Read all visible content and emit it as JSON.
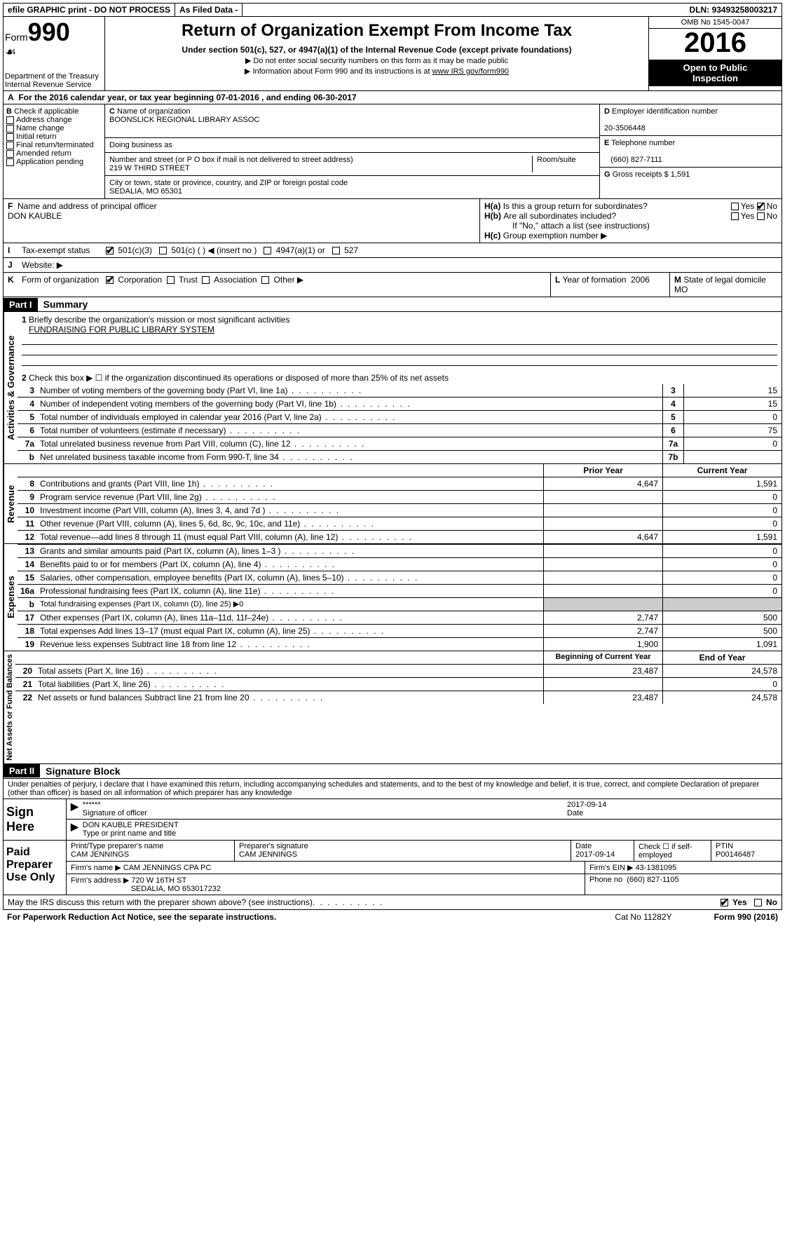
{
  "topbar": {
    "efile": "efile GRAPHIC print - DO NOT PROCESS",
    "asfiled": "As Filed Data -",
    "dln_label": "DLN:",
    "dln": "93493258003217"
  },
  "header": {
    "form_label": "Form",
    "form_num": "990",
    "dept1": "Department of the Treasury",
    "dept2": "Internal Revenue Service",
    "title": "Return of Organization Exempt From Income Tax",
    "subtitle": "Under section 501(c), 527, or 4947(a)(1) of the Internal Revenue Code (except private foundations)",
    "note1": "▶ Do not enter social security numbers on this form as it may be made public",
    "note2_a": "▶ Information about Form 990 and its instructions is at ",
    "note2_link": "www IRS gov/form990",
    "omb": "OMB No  1545-0047",
    "year": "2016",
    "open1": "Open to Public",
    "open2": "Inspection"
  },
  "rowA": {
    "label": "A",
    "text": "For the 2016 calendar year, or tax year beginning 07-01-2016   , and ending 06-30-2017"
  },
  "boxB": {
    "label": "B",
    "title": "Check if applicable",
    "items": [
      "Address change",
      "Name change",
      "Initial return",
      "Final return/terminated",
      "Amended return",
      "Application pending"
    ]
  },
  "boxC": {
    "label": "C",
    "name_label": "Name of organization",
    "name": "BOONSLICK REGIONAL LIBRARY ASSOC",
    "dba_label": "Doing business as",
    "addr_label": "Number and street (or P O  box if mail is not delivered to street address)",
    "room_label": "Room/suite",
    "addr": "219 W THIRD STREET",
    "city_label": "City or town, state or province, country, and ZIP or foreign postal code",
    "city": "SEDALIA, MO  65301"
  },
  "boxD": {
    "label": "D",
    "title": "Employer identification number",
    "val": "20-3506448"
  },
  "boxE": {
    "label": "E",
    "title": "Telephone number",
    "val": "(660) 827-7111"
  },
  "boxG": {
    "label": "G",
    "title": "Gross receipts $",
    "val": "1,591"
  },
  "boxF": {
    "label": "F",
    "title": "Name and address of principal officer",
    "val": "DON KAUBLE"
  },
  "boxH": {
    "a_label": "H(a)",
    "a_text": "Is this a group return for subordinates?",
    "b_label": "H(b)",
    "b_text": "Are all subordinates included?",
    "b_note": "If \"No,\" attach a list  (see instructions)",
    "c_label": "H(c)",
    "c_text": "Group exemption number ▶",
    "yes": "Yes",
    "no": "No"
  },
  "rowI": {
    "label": "I",
    "title": "Tax-exempt status",
    "opt1": "501(c)(3)",
    "opt2": "501(c) (   ) ◀ (insert no )",
    "opt3": "4947(a)(1) or",
    "opt4": "527"
  },
  "rowJ": {
    "label": "J",
    "title": "Website: ▶"
  },
  "rowK": {
    "label": "K",
    "title": "Form of organization",
    "opts": [
      "Corporation",
      "Trust",
      "Association",
      "Other ▶"
    ]
  },
  "rowL": {
    "label": "L",
    "title": "Year of formation",
    "val": "2006"
  },
  "rowM": {
    "label": "M",
    "title": "State of legal domicile",
    "val": "MO"
  },
  "part1": {
    "hdr": "Part I",
    "title": "Summary",
    "line1_label": "1",
    "line1": "Briefly describe the organization's mission or most significant activities",
    "line1_val": "FUNDRAISING FOR PUBLIC LIBRARY SYSTEM",
    "line2_label": "2",
    "line2": "Check this box ▶ ☐  if the organization discontinued its operations or disposed of more than 25% of its net assets",
    "vlabels": {
      "ag": "Activities & Governance",
      "rev": "Revenue",
      "exp": "Expenses",
      "na": "Net Assets or Fund Balances"
    },
    "rows_ag": [
      {
        "n": "3",
        "d": "Number of voting members of the governing body (Part VI, line 1a)",
        "box": "3",
        "v": "15"
      },
      {
        "n": "4",
        "d": "Number of independent voting members of the governing body (Part VI, line 1b)",
        "box": "4",
        "v": "15"
      },
      {
        "n": "5",
        "d": "Total number of individuals employed in calendar year 2016 (Part V, line 2a)",
        "box": "5",
        "v": "0"
      },
      {
        "n": "6",
        "d": "Total number of volunteers (estimate if necessary)",
        "box": "6",
        "v": "75"
      },
      {
        "n": "7a",
        "d": "Total unrelated business revenue from Part VIII, column (C), line 12",
        "box": "7a",
        "v": "0"
      },
      {
        "n": "b",
        "d": "Net unrelated business taxable income from Form 990-T, line 34",
        "box": "7b",
        "v": ""
      }
    ],
    "col_hdr1": "Prior Year",
    "col_hdr2": "Current Year",
    "rows_rev": [
      {
        "n": "8",
        "d": "Contributions and grants (Part VIII, line 1h)",
        "c1": "4,647",
        "c2": "1,591"
      },
      {
        "n": "9",
        "d": "Program service revenue (Part VIII, line 2g)",
        "c1": "",
        "c2": "0"
      },
      {
        "n": "10",
        "d": "Investment income (Part VIII, column (A), lines 3, 4, and 7d )",
        "c1": "",
        "c2": "0"
      },
      {
        "n": "11",
        "d": "Other revenue (Part VIII, column (A), lines 5, 6d, 8c, 9c, 10c, and 11e)",
        "c1": "",
        "c2": "0"
      },
      {
        "n": "12",
        "d": "Total revenue—add lines 8 through 11 (must equal Part VIII, column (A), line 12)",
        "c1": "4,647",
        "c2": "1,591"
      }
    ],
    "rows_exp": [
      {
        "n": "13",
        "d": "Grants and similar amounts paid (Part IX, column (A), lines 1–3 )",
        "c1": "",
        "c2": "0"
      },
      {
        "n": "14",
        "d": "Benefits paid to or for members (Part IX, column (A), line 4)",
        "c1": "",
        "c2": "0"
      },
      {
        "n": "15",
        "d": "Salaries, other compensation, employee benefits (Part IX, column (A), lines 5–10)",
        "c1": "",
        "c2": "0"
      },
      {
        "n": "16a",
        "d": "Professional fundraising fees (Part IX, column (A), line 11e)",
        "c1": "",
        "c2": "0"
      },
      {
        "n": "b",
        "d": "Total fundraising expenses (Part IX, column (D), line 25) ▶0",
        "c1": "",
        "c2": "",
        "noval": true
      },
      {
        "n": "17",
        "d": "Other expenses (Part IX, column (A), lines 11a–11d, 11f–24e)",
        "c1": "2,747",
        "c2": "500"
      },
      {
        "n": "18",
        "d": "Total expenses  Add lines 13–17 (must equal Part IX, column (A), line 25)",
        "c1": "2,747",
        "c2": "500"
      },
      {
        "n": "19",
        "d": "Revenue less expenses  Subtract line 18 from line 12",
        "c1": "1,900",
        "c2": "1,091"
      }
    ],
    "col_hdr3": "Beginning of Current Year",
    "col_hdr4": "End of Year",
    "rows_na": [
      {
        "n": "20",
        "d": "Total assets (Part X, line 16)",
        "c1": "23,487",
        "c2": "24,578"
      },
      {
        "n": "21",
        "d": "Total liabilities (Part X, line 26)",
        "c1": "",
        "c2": "0"
      },
      {
        "n": "22",
        "d": "Net assets or fund balances  Subtract line 21 from line 20",
        "c1": "23,487",
        "c2": "24,578"
      }
    ]
  },
  "part2": {
    "hdr": "Part II",
    "title": "Signature Block",
    "perjury": "Under penalties of perjury, I declare that I have examined this return, including accompanying schedules and statements, and to the best of my knowledge and belief, it is true, correct, and complete  Declaration of preparer (other than officer) is based on all information of which preparer has any knowledge",
    "sign_here": "Sign Here",
    "stars": "******",
    "sig_officer": "Signature of officer",
    "sig_date": "2017-09-14",
    "date_label": "Date",
    "officer_name": "DON KAUBLE  PRESIDENT",
    "type_label": "Type or print name and title",
    "paid": "Paid Preparer Use Only",
    "prep_name_label": "Print/Type preparer's name",
    "prep_name": "CAM JENNINGS",
    "prep_sig_label": "Preparer's signature",
    "prep_sig": "CAM JENNINGS",
    "prep_date_label": "Date",
    "prep_date": "2017-09-14",
    "check_label": "Check ☐ if self-employed",
    "ptin_label": "PTIN",
    "ptin": "P00146487",
    "firm_name_label": "Firm's name    ▶",
    "firm_name": "CAM JENNINGS CPA PC",
    "firm_ein_label": "Firm's EIN ▶",
    "firm_ein": "43-1381095",
    "firm_addr_label": "Firm's address ▶",
    "firm_addr1": "720 W 16TH ST",
    "firm_addr2": "SEDALIA, MO  653017232",
    "phone_label": "Phone no",
    "phone": "(660) 827-1105",
    "discuss": "May the IRS discuss this return with the preparer shown above? (see instructions)",
    "yes": "Yes",
    "no": "No"
  },
  "footer": {
    "left": "For Paperwork Reduction Act Notice, see the separate instructions.",
    "mid": "Cat  No  11282Y",
    "right": "Form 990 (2016)"
  }
}
